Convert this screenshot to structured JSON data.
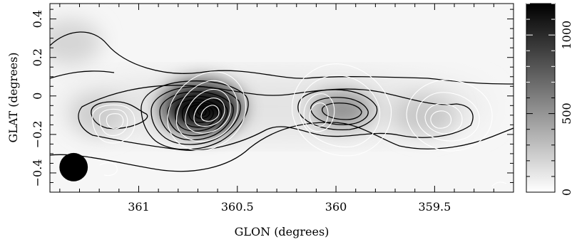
{
  "chart_data": {
    "type": "heatmap",
    "title": "",
    "xlabel": "GLON (degrees)",
    "ylabel": "GLAT (degrees)",
    "xlim": [
      361.45,
      359.1
    ],
    "ylim": [
      -0.5,
      0.48
    ],
    "x_ticks": [
      {
        "value": 361,
        "label": "361"
      },
      {
        "value": 360.5,
        "label": "360.5"
      },
      {
        "value": 360,
        "label": "360"
      },
      {
        "value": 359.5,
        "label": "359.5"
      }
    ],
    "y_ticks": [
      {
        "value": 0.4,
        "label": "0.4"
      },
      {
        "value": 0.2,
        "label": "0.2"
      },
      {
        "value": 0,
        "label": "0"
      },
      {
        "value": -0.2,
        "label": "−0.2"
      },
      {
        "value": -0.4,
        "label": "−0.4"
      }
    ],
    "colorbar": {
      "range": [
        0,
        1200
      ],
      "ticks": [
        {
          "value": 0,
          "label": "0"
        },
        {
          "value": 500,
          "label": "500"
        },
        {
          "value": 1000,
          "label": "1000"
        }
      ],
      "colormap": "grayscale, white (low) to black (high)"
    },
    "sources": [
      {
        "glon": 360.68,
        "glat": -0.06,
        "peak": 1150,
        "sx": 0.2,
        "sy": 0.13
      },
      {
        "glon": 359.97,
        "glat": -0.07,
        "peak": 520,
        "sx": 0.15,
        "sy": 0.09
      },
      {
        "glon": 359.55,
        "glat": -0.1,
        "peak": 260,
        "sx": 0.16,
        "sy": 0.1
      },
      {
        "glon": 361.2,
        "glat": -0.1,
        "peak": 240,
        "sx": 0.14,
        "sy": 0.1
      },
      {
        "glon": 361.35,
        "glat": 0.28,
        "peak": 200,
        "sx": 0.16,
        "sy": 0.12
      }
    ],
    "beam": {
      "glon": 361.33,
      "glat": -0.37,
      "diameter_deg": 0.16
    },
    "colors": {
      "black_contours": "#000000",
      "white_contours": "#ffffff",
      "beam": "#000000"
    }
  }
}
